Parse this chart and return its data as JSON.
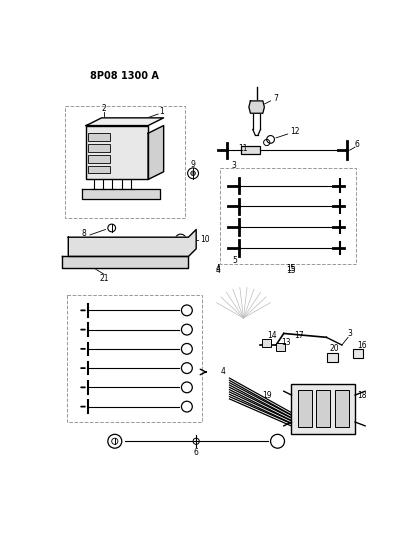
{
  "title": "8P08 1300 A",
  "bg": "#ffffff",
  "lc": "#000000",
  "gray": "#888888",
  "lgray": "#cccccc",
  "fig_w": 4.1,
  "fig_h": 5.33,
  "dpi": 100
}
